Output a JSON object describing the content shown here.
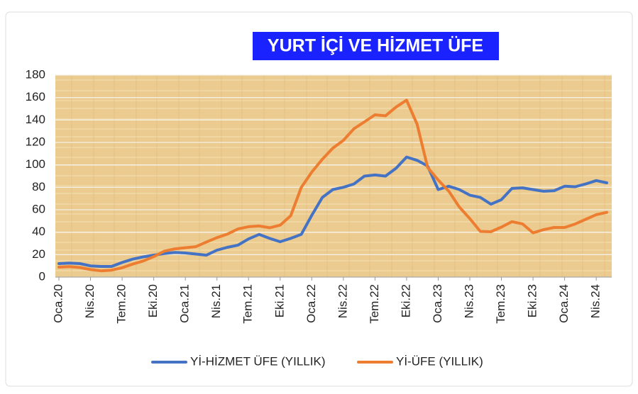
{
  "chart_data": {
    "type": "line",
    "title": "YURT İÇİ VE HİZMET ÜFE",
    "categories": [
      "Oca.20",
      null,
      null,
      "Nis.20",
      null,
      null,
      "Tem.20",
      null,
      null,
      "Eki.20",
      null,
      null,
      "Oca.21",
      null,
      null,
      "Nis.21",
      null,
      null,
      "Tem.21",
      null,
      null,
      "Eki.21",
      null,
      null,
      "Oca.22",
      null,
      null,
      "Nis.22",
      null,
      null,
      "Tem.22",
      null,
      null,
      "Eki.22",
      null,
      null,
      "Oca.23",
      null,
      null,
      "Nis.23",
      null,
      null,
      "Tem.23",
      null,
      null,
      "Eki.23",
      null,
      null,
      "Oca.24",
      null,
      null,
      "Nis.24",
      null
    ],
    "series": [
      {
        "name": "Yİ-HİZMET ÜFE (YILLIK)",
        "color": "#4472c4",
        "values": [
          12,
          12.5,
          12,
          10,
          9.5,
          9.5,
          13,
          16,
          18,
          19.5,
          21,
          22,
          21.5,
          20.5,
          19.5,
          24,
          26.5,
          28.5,
          34,
          38,
          34.5,
          31.5,
          34.5,
          38,
          55,
          71,
          78,
          80,
          83,
          90,
          91,
          90,
          97,
          107,
          104,
          99,
          78,
          81,
          78,
          73,
          71,
          65,
          69,
          79,
          79.5,
          78,
          76.5,
          77,
          81,
          80.5,
          83,
          86,
          84
        ]
      },
      {
        "name": "Yİ-ÜFE (YILLIK)",
        "color": "#ed7d31",
        "values": [
          8.84,
          9.26,
          8.5,
          6.71,
          5.53,
          6.17,
          8.33,
          11.53,
          14.33,
          18.2,
          23.11,
          25.15,
          26.16,
          27.09,
          31.2,
          35.17,
          38.33,
          42.89,
          44.92,
          45.52,
          43.96,
          46.31,
          54.62,
          79.89,
          93.53,
          105.01,
          114.97,
          121.82,
          132.16,
          138.31,
          144.61,
          143.75,
          151.5,
          157.69,
          136.02,
          97.72,
          86.46,
          76.61,
          62.45,
          52.11,
          40.76,
          40.42,
          44.5,
          49.41,
          47.44,
          39.39,
          42.25,
          44.22,
          44.2,
          47.29,
          51.47,
          55.66,
          57.68
        ]
      }
    ],
    "ylim": [
      0,
      180
    ],
    "yticks": [
      0,
      20,
      40,
      60,
      80,
      100,
      120,
      140,
      160,
      180
    ],
    "grid": true
  }
}
